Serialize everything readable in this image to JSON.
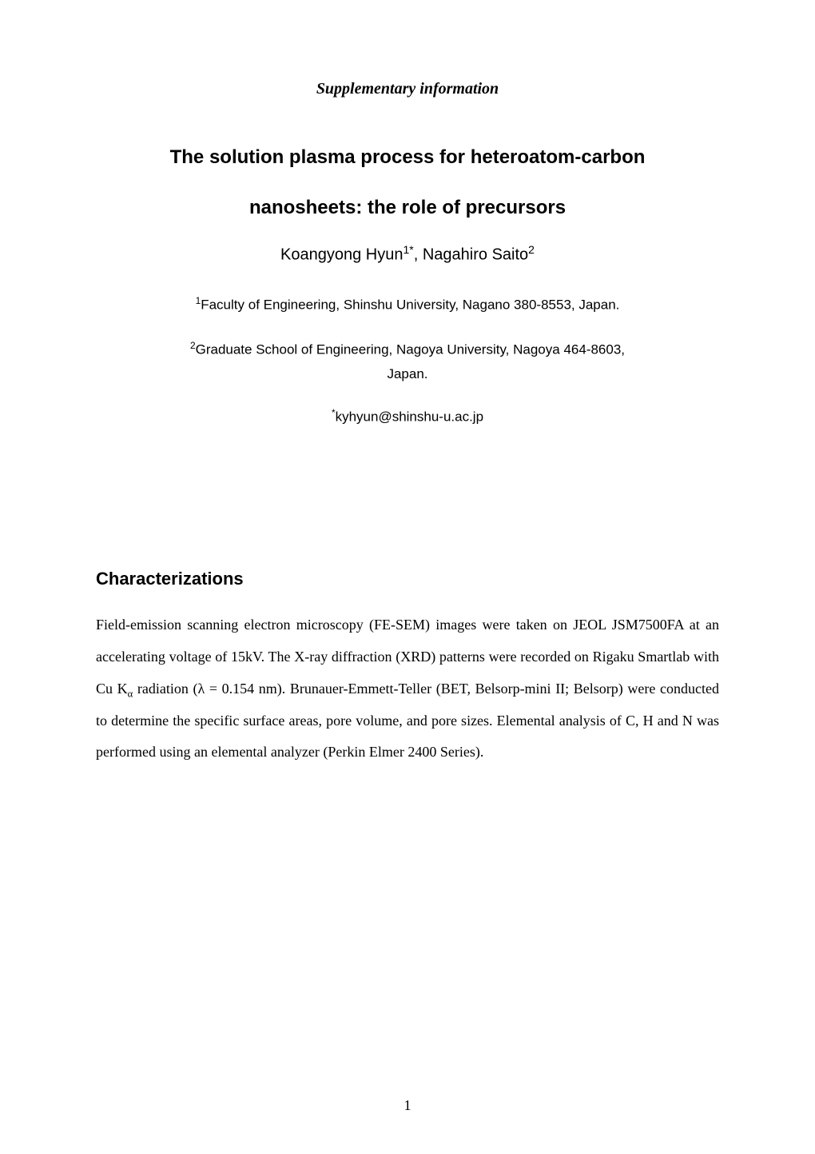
{
  "header": {
    "supplementary": "Supplementary information"
  },
  "title": {
    "line1": "The solution plasma process for heteroatom-carbon",
    "line2": "nanosheets: the role of precursors"
  },
  "authors": {
    "author1_name": "Koangyong Hyun",
    "author1_sup": "1*",
    "separator": ", ",
    "author2_name": "Nagahiro Saito",
    "author2_sup": "2"
  },
  "affiliations": {
    "aff1_sup": "1",
    "aff1_text": "Faculty of Engineering, Shinshu University, Nagano 380-8553, Japan.",
    "aff2_sup": "2",
    "aff2_text_line1": "Graduate School of Engineering, Nagoya University, Nagoya 464-8603,",
    "aff2_text_line2": "Japan."
  },
  "email": {
    "sup": "*",
    "address": "kyhyun@shinshu-u.ac.jp"
  },
  "section": {
    "heading": "Characterizations",
    "body_part1": "Field-emission scanning electron microscopy (FE-SEM) images were taken on JEOL JSM7500FA at an accelerating voltage of 15kV. The X-ray diffraction (XRD) patterns were recorded on Rigaku Smartlab with Cu K",
    "body_sub1": "α",
    "body_part2": " radiation (λ = 0.154 nm). Brunauer-Emmett-Teller (BET, Belsorp-mini II; Belsorp) were conducted to determine the specific surface areas, pore volume, and pore sizes. Elemental analysis of C, H and N was performed using an elemental analyzer (Perkin Elmer 2400 Series)."
  },
  "page_number": "1"
}
